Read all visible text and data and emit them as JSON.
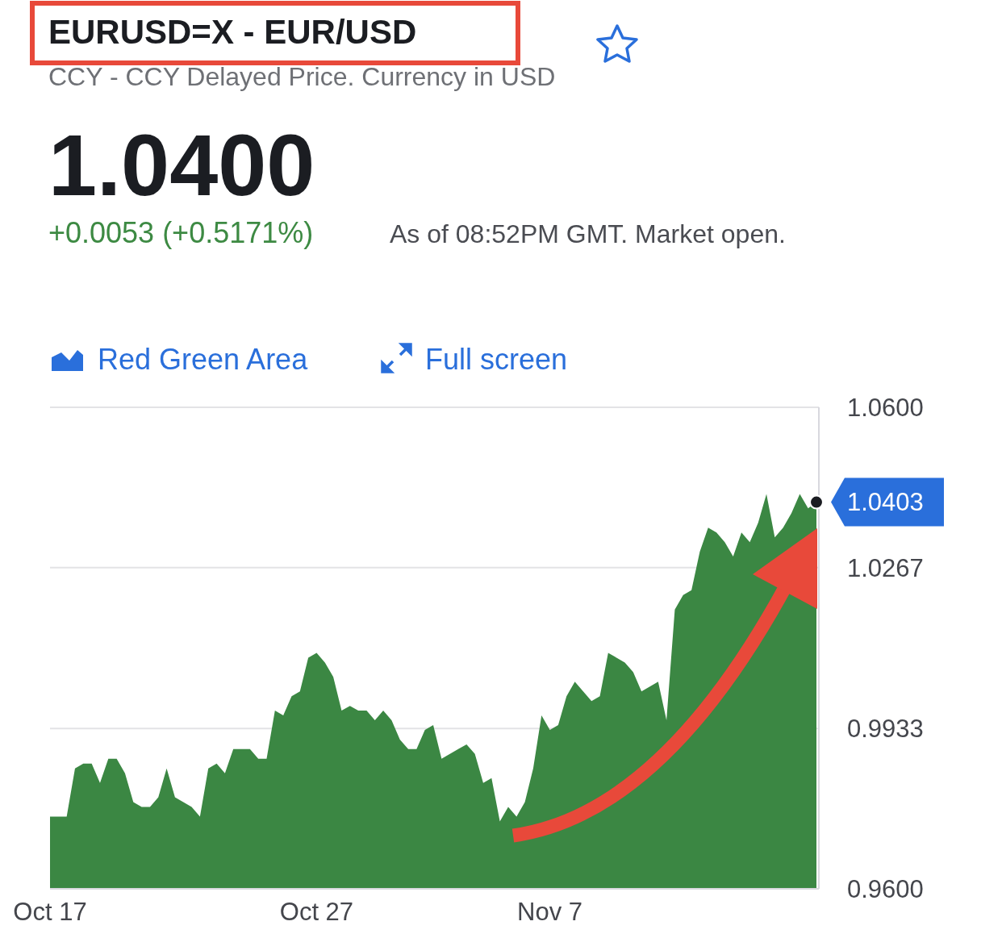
{
  "chart_data": {
    "type": "area",
    "title": "EURUSD=X - EUR/USD",
    "subtitle": "CCY - CCY Delayed Price. Currency in USD",
    "annotations": [
      "1.0400",
      "+0.0053 (+0.5171%)",
      "As of 08:52PM GMT. Market open.",
      "Red Green Area",
      "Full screen",
      "1.0403"
    ],
    "categories": [
      "Oct 17",
      null,
      null,
      null,
      null,
      null,
      null,
      null,
      null,
      null,
      null,
      null,
      null,
      null,
      null,
      null,
      null,
      null,
      null,
      null,
      null,
      null,
      null,
      null,
      null,
      null,
      null,
      null,
      null,
      null,
      null,
      null,
      "Oct 27",
      null,
      null,
      null,
      null,
      null,
      null,
      null,
      null,
      null,
      null,
      null,
      null,
      null,
      null,
      null,
      null,
      null,
      null,
      null,
      null,
      null,
      null,
      null,
      null,
      null,
      null,
      null,
      "Nov 7",
      null,
      null,
      null,
      null,
      null,
      null,
      null,
      null,
      null,
      null,
      null,
      null,
      null,
      null,
      null,
      null,
      null,
      null,
      null,
      null,
      null,
      null,
      null,
      null,
      null,
      null,
      null,
      null,
      null,
      null,
      null,
      null
    ],
    "series": [
      {
        "color": "#3b8743",
        "values": [
          0.975,
          0.975,
          0.975,
          0.985,
          0.986,
          0.986,
          0.982,
          0.987,
          0.987,
          0.984,
          0.978,
          0.977,
          0.977,
          0.979,
          0.985,
          0.979,
          0.978,
          0.977,
          0.975,
          0.985,
          0.986,
          0.984,
          0.989,
          0.989,
          0.989,
          0.987,
          0.987,
          0.997,
          0.996,
          1.0,
          1.001,
          1.008,
          1.009,
          1.007,
          1.004,
          0.997,
          0.998,
          0.997,
          0.997,
          0.995,
          0.997,
          0.995,
          0.991,
          0.989,
          0.989,
          0.993,
          0.994,
          0.987,
          0.988,
          0.989,
          0.99,
          0.988,
          0.982,
          0.983,
          0.974,
          0.977,
          0.975,
          0.978,
          0.985,
          0.996,
          0.993,
          0.994,
          1.0,
          1.003,
          1.001,
          0.999,
          1.0,
          1.009,
          1.008,
          1.007,
          1.005,
          1.001,
          1.002,
          1.003,
          0.995,
          1.018,
          1.021,
          1.022,
          1.03,
          1.035,
          1.034,
          1.032,
          1.029,
          1.034,
          1.032,
          1.036,
          1.042,
          1.033,
          1.035,
          1.038,
          1.042,
          1.039,
          1.0403
        ]
      }
    ],
    "ylim": [
      0.96,
      1.06
    ],
    "yticks": [
      {
        "value": 0.96,
        "label": "0.9600"
      },
      0.9933,
      1.0267,
      {
        "value": 1.06,
        "label": "1.0600"
      }
    ],
    "grid": "y"
  }
}
